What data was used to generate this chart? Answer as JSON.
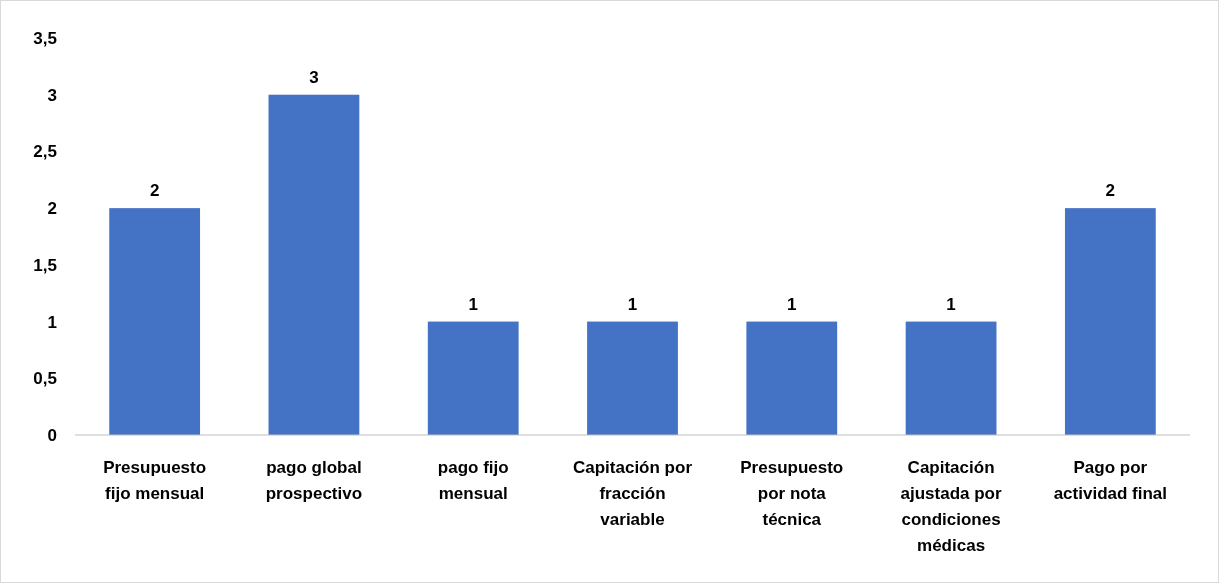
{
  "chart_data": {
    "type": "bar",
    "categories": [
      "Presupuesto fijo mensual",
      "pago global prospectivo",
      "pago fijo mensual",
      "Capitación por fracción variable",
      "Presupuesto por nota técnica",
      "Capitación ajustada por condiciones médicas",
      "Pago por actividad final"
    ],
    "values": [
      2,
      3,
      1,
      1,
      1,
      1,
      2
    ],
    "color": "#4472c4",
    "ylim": [
      0,
      3.5
    ],
    "yticks": [
      0,
      {
        "value": 0.5,
        "label": "0,5"
      },
      1,
      {
        "value": 1.5,
        "label": "1,5"
      },
      2,
      {
        "value": 2.5,
        "label": "2,5"
      },
      3,
      {
        "value": 3.5,
        "label": "3,5"
      }
    ],
    "data_labels": true,
    "grid": false
  }
}
